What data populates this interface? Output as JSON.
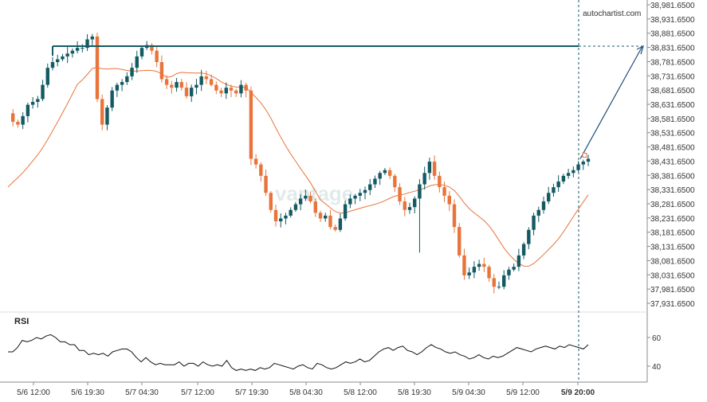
{
  "brand": "autochartist.com",
  "rsi_label": "RSI",
  "colors": {
    "up": "#145a63",
    "down": "#e8743b",
    "ma": "#e8743b",
    "resistance": "#145a63",
    "arrow": "#1f4e79",
    "rsi": "#111111",
    "axis": "#888888"
  },
  "chart_data": [
    {
      "type": "candlestick",
      "title": "",
      "x_ticks": [
        "5/6 12:00",
        "5/6 19:30",
        "5/7 04:30",
        "5/7 12:00",
        "5/7 19:30",
        "5/8 04:30",
        "5/8 12:00",
        "5/8 19:30",
        "5/9 04:30",
        "5/9 12:00",
        "5/9 20:00"
      ],
      "y_ticks": [
        "38,981.6500",
        "38,931.6500",
        "38,881.6500",
        "38,831.6500",
        "38,781.6500",
        "38,731.6500",
        "38,681.6500",
        "38,631.6500",
        "38,581.6500",
        "38,531.6500",
        "38,481.6500",
        "38,431.6500",
        "38,381.6500",
        "38,331.6500",
        "38,281.6500",
        "38,231.6500",
        "38,181.6500",
        "38,131.6500",
        "38,081.6500",
        "38,031.6500",
        "37,981.6500",
        "37,931.6500"
      ],
      "ylim": [
        37900,
        38995
      ],
      "resistance_level": 38836,
      "forecast_target": 38836,
      "forecast_start": 38440,
      "close_path": [
        38600,
        38570,
        38560,
        38590,
        38630,
        38640,
        38650,
        38700,
        38760,
        38780,
        38790,
        38800,
        38810,
        38820,
        38830,
        38830,
        38860,
        38870,
        38650,
        38560,
        38620,
        38680,
        38700,
        38710,
        38730,
        38760,
        38800,
        38830,
        38840,
        38820,
        38780,
        38720,
        38700,
        38690,
        38710,
        38690,
        38660,
        38690,
        38700,
        38730,
        38720,
        38700,
        38680,
        38670,
        38690,
        38680,
        38670,
        38700,
        38680,
        38440,
        38420,
        38380,
        38320,
        38260,
        38220,
        38230,
        38240,
        38260,
        38280,
        38300,
        38310,
        38290,
        38250,
        38230,
        38240,
        38200,
        38190,
        38230,
        38280,
        38300,
        38310,
        38320,
        38330,
        38350,
        38370,
        38390,
        38400,
        38380,
        38340,
        38290,
        38260,
        38270,
        38300,
        38350,
        38390,
        38430,
        38380,
        38340,
        38310,
        38280,
        38200,
        38100,
        38030,
        38040,
        38060,
        38070,
        38060,
        38020,
        37990,
        37990,
        38030,
        38050,
        38060,
        38100,
        38140,
        38190,
        38240,
        38260,
        38290,
        38320,
        38340,
        38360,
        38380,
        38390,
        38400,
        38420,
        38430,
        38440
      ],
      "ma_start": 38340,
      "ma_end": 38290,
      "rsi_ticks": [
        "60",
        "40"
      ],
      "rsi_values": [
        50,
        50,
        53,
        58,
        57,
        58,
        60,
        59,
        61,
        62,
        60,
        57,
        57,
        55,
        55,
        51,
        51,
        48,
        49,
        48,
        49,
        47,
        50,
        51,
        52,
        52,
        50,
        46,
        43,
        46,
        43,
        41,
        42,
        41,
        41,
        41,
        43,
        40,
        42,
        42,
        40,
        43,
        41,
        40,
        41,
        40,
        44,
        39,
        37,
        38,
        37,
        38,
        37,
        39,
        38,
        39,
        42,
        41,
        40,
        39,
        38,
        40,
        41,
        39,
        38,
        42,
        41,
        39,
        38,
        39,
        41,
        43,
        42,
        43,
        45,
        43,
        44,
        47,
        50,
        52,
        53,
        51,
        53,
        54,
        51,
        50,
        48,
        50,
        53,
        55,
        53,
        52,
        50,
        49,
        50,
        48,
        47,
        45,
        46,
        48,
        46,
        45,
        47,
        46,
        47,
        49,
        51,
        53,
        52,
        51,
        50,
        52,
        53,
        54,
        53,
        52,
        54,
        53,
        55,
        54,
        53,
        52,
        55
      ]
    }
  ]
}
